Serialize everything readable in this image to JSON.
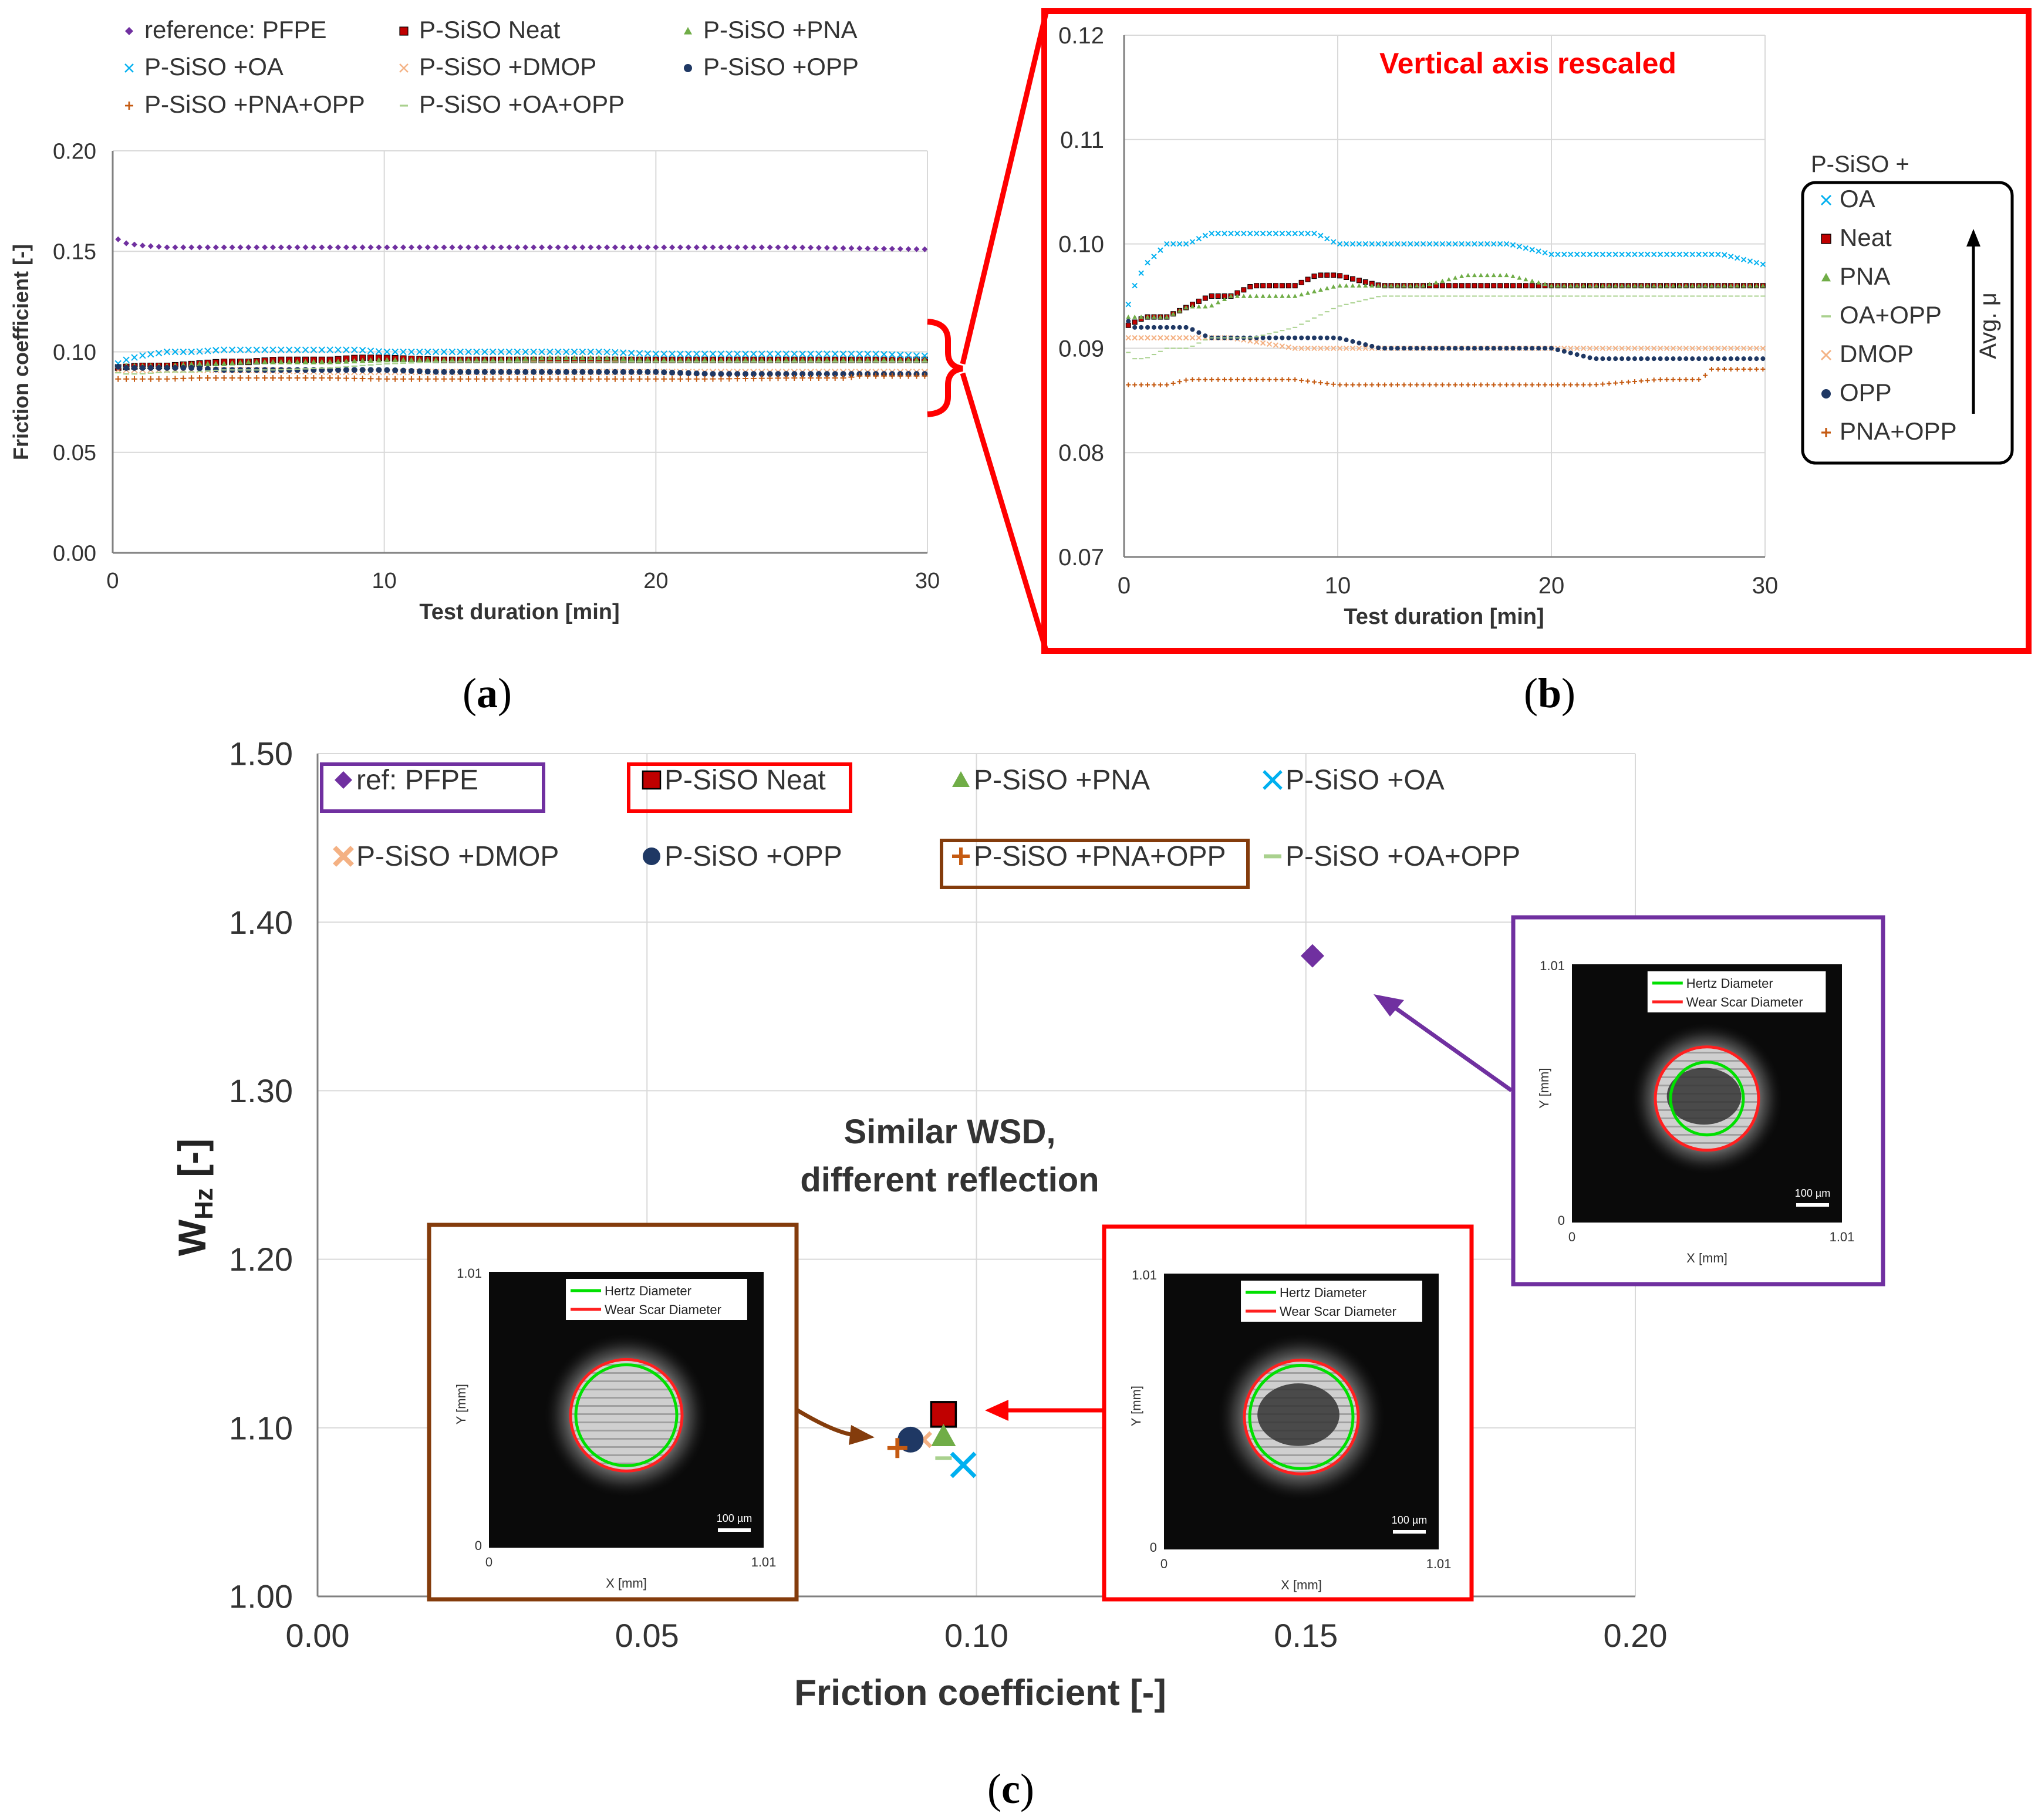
{
  "colors": {
    "pfpe": "#7030A0",
    "neat": "#C00000",
    "pna": "#70AD47",
    "oa": "#00B0F0",
    "dmop": "#F4B183",
    "opp": "#1F3864",
    "pna_opp": "#C55A11",
    "oa_opp": "#A9D18E",
    "red_box": "#FF0000",
    "purple_box": "#7030A0",
    "brown_box": "#843C0C",
    "grid": "#D9D9D9",
    "axis": "#808080"
  },
  "panels": {
    "a": {
      "label_open": "(",
      "label_letter": "a",
      "label_close": ")",
      "legend": [
        {
          "key": "pfpe",
          "label": "reference: PFPE",
          "marker": "diamond"
        },
        {
          "key": "neat",
          "label": "P-SiSO Neat",
          "marker": "square"
        },
        {
          "key": "pna",
          "label": "P-SiSO +PNA",
          "marker": "triangle"
        },
        {
          "key": "oa",
          "label": "P-SiSO +OA",
          "marker": "x"
        },
        {
          "key": "dmop",
          "label": "P-SiSO +DMOP",
          "marker": "x"
        },
        {
          "key": "opp",
          "label": "P-SiSO +OPP",
          "marker": "circle"
        },
        {
          "key": "pna_opp",
          "label": "P-SiSO +PNA+OPP",
          "marker": "plus"
        },
        {
          "key": "oa_opp",
          "label": "P-SiSO +OA+OPP",
          "marker": "dash"
        }
      ]
    },
    "b": {
      "label_open": "(",
      "label_letter": "b",
      "label_close": ")",
      "annotation": "Vertical axis rescaled",
      "legend_title": "P-SiSO +",
      "legend": [
        {
          "key": "oa",
          "label": "OA",
          "marker": "x"
        },
        {
          "key": "neat",
          "label": "Neat",
          "marker": "square"
        },
        {
          "key": "pna",
          "label": "PNA",
          "marker": "triangle"
        },
        {
          "key": "oa_opp",
          "label": "OA+OPP",
          "marker": "dash"
        },
        {
          "key": "dmop",
          "label": "DMOP",
          "marker": "x"
        },
        {
          "key": "opp",
          "label": "OPP",
          "marker": "circle"
        },
        {
          "key": "pna_opp",
          "label": "PNA+OPP",
          "marker": "plus"
        }
      ],
      "avg_label": "Avg. μ"
    },
    "c": {
      "label_open": "(",
      "label_letter": "c",
      "label_close": ")",
      "legend": [
        {
          "key": "pfpe",
          "label": "ref: PFPE",
          "marker": "diamond",
          "boxed": "purple_box"
        },
        {
          "key": "neat",
          "label": "P-SiSO Neat",
          "marker": "square",
          "boxed": "red_box"
        },
        {
          "key": "pna",
          "label": "P-SiSO +PNA",
          "marker": "triangle"
        },
        {
          "key": "oa",
          "label": "P-SiSO +OA",
          "marker": "x"
        },
        {
          "key": "dmop",
          "label": "P-SiSO +DMOP",
          "marker": "xbold"
        },
        {
          "key": "opp",
          "label": "P-SiSO +OPP",
          "marker": "circle"
        },
        {
          "key": "pna_opp",
          "label": "P-SiSO +PNA+OPP",
          "marker": "plus",
          "boxed": "brown_box"
        },
        {
          "key": "oa_opp",
          "label": "P-SiSO +OA+OPP",
          "marker": "dash"
        }
      ],
      "annotation_line1": "Similar WSD,",
      "annotation_line2": "different reflection",
      "ylabel_main": "W",
      "ylabel_sub": "Hz",
      "ylabel_tail": " [-]",
      "insets": [
        {
          "id": "pfpe",
          "legend_hertz": "Hertz Diameter",
          "legend_wsd": "Wear Scar Diameter",
          "ymax": "1.01",
          "xmax": "1.01",
          "zero": "0",
          "xlabel": "X [mm]",
          "ylabel": "Y [mm]",
          "scale": "100 µm"
        },
        {
          "id": "pna_opp",
          "legend_hertz": "Hertz Diameter",
          "legend_wsd": "Wear Scar Diameter",
          "ymax": "1.01",
          "xmax": "1.01",
          "zero": "0",
          "xlabel": "X [mm]",
          "ylabel": "Y [mm]",
          "scale": "100 µm"
        },
        {
          "id": "neat",
          "legend_hertz": "Hertz Diameter",
          "legend_wsd": "Wear Scar Diameter",
          "ymax": "1.01",
          "xmax": "1.01",
          "zero": "0",
          "xlabel": "X [mm]",
          "ylabel": "Y [mm]",
          "scale": "100 µm"
        }
      ]
    }
  },
  "chart_data": [
    {
      "type": "line",
      "panel": "a",
      "xlabel": "Test duration [min]",
      "ylabel": "Friction coefficient [-]",
      "xlim": [
        0,
        30
      ],
      "ylim": [
        0,
        0.2
      ],
      "xticks": [
        0,
        10,
        20,
        30
      ],
      "yticks": [
        0,
        0.05,
        0.1,
        0.15,
        0.2
      ],
      "xtick_labels": [
        "0",
        "10",
        "20",
        "30"
      ],
      "ytick_labels": [
        "0.00",
        "0.05",
        "0.10",
        "0.15",
        "0.20"
      ],
      "grid": true,
      "legend_position": "top",
      "series": [
        {
          "key": "pfpe",
          "name": "reference: PFPE",
          "x": [
            0.2,
            0.5,
            1,
            2,
            3,
            5,
            10,
            15,
            20,
            25,
            30
          ],
          "y": [
            0.156,
            0.154,
            0.153,
            0.152,
            0.152,
            0.152,
            0.152,
            0.152,
            0.152,
            0.152,
            0.151
          ]
        },
        {
          "key": "neat",
          "name": "P-SiSO Neat",
          "x": [
            0,
            1,
            2,
            3,
            4,
            5,
            6,
            7,
            8,
            9,
            10,
            12,
            14,
            16,
            18,
            20,
            22,
            25,
            28,
            30
          ],
          "y": [
            0.092,
            0.093,
            0.093,
            0.094,
            0.095,
            0.095,
            0.096,
            0.096,
            0.096,
            0.097,
            0.097,
            0.096,
            0.096,
            0.096,
            0.096,
            0.096,
            0.096,
            0.096,
            0.096,
            0.096
          ]
        },
        {
          "key": "pna",
          "name": "P-SiSO +PNA",
          "x": [
            0,
            1,
            2,
            3,
            4,
            5,
            6,
            8,
            10,
            12,
            14,
            16,
            18,
            20,
            22,
            25,
            28,
            30
          ],
          "y": [
            0.093,
            0.093,
            0.093,
            0.094,
            0.094,
            0.095,
            0.095,
            0.095,
            0.096,
            0.096,
            0.096,
            0.097,
            0.097,
            0.096,
            0.096,
            0.096,
            0.096,
            0.096
          ]
        },
        {
          "key": "oa",
          "name": "P-SiSO +OA",
          "x": [
            0,
            0.5,
            1,
            1.5,
            2,
            3,
            4,
            5,
            6,
            7,
            8,
            9,
            10,
            12,
            14,
            16,
            18,
            20,
            22,
            24,
            26,
            28,
            30
          ],
          "y": [
            0.093,
            0.096,
            0.098,
            0.099,
            0.1,
            0.1,
            0.101,
            0.101,
            0.101,
            0.101,
            0.101,
            0.101,
            0.1,
            0.1,
            0.1,
            0.1,
            0.1,
            0.099,
            0.099,
            0.099,
            0.099,
            0.099,
            0.098
          ]
        },
        {
          "key": "dmop",
          "name": "P-SiSO +DMOP",
          "x": [
            0,
            1,
            2,
            3,
            5,
            8,
            10,
            12,
            15,
            18,
            20,
            22,
            25,
            28,
            30
          ],
          "y": [
            0.091,
            0.091,
            0.091,
            0.091,
            0.091,
            0.09,
            0.09,
            0.09,
            0.09,
            0.09,
            0.09,
            0.09,
            0.09,
            0.09,
            0.09
          ]
        },
        {
          "key": "opp",
          "name": "P-SiSO +OPP",
          "x": [
            0,
            0.5,
            1,
            2,
            3,
            4,
            5,
            6,
            8,
            10,
            12,
            14,
            16,
            18,
            20,
            22,
            25,
            28,
            30
          ],
          "y": [
            0.093,
            0.092,
            0.092,
            0.092,
            0.092,
            0.091,
            0.091,
            0.091,
            0.091,
            0.091,
            0.09,
            0.09,
            0.09,
            0.09,
            0.09,
            0.089,
            0.089,
            0.089,
            0.089
          ]
        },
        {
          "key": "pna_opp",
          "name": "P-SiSO +PNA+OPP",
          "x": [
            0,
            1,
            2,
            3,
            5,
            8,
            10,
            12,
            15,
            18,
            20,
            22,
            25,
            27,
            27.5,
            28,
            30
          ],
          "y": [
            0.0865,
            0.0865,
            0.0865,
            0.087,
            0.087,
            0.087,
            0.0865,
            0.0865,
            0.0865,
            0.0865,
            0.0865,
            0.0865,
            0.087,
            0.087,
            0.088,
            0.088,
            0.088
          ]
        },
        {
          "key": "oa_opp",
          "name": "P-SiSO +OA+OPP",
          "x": [
            0,
            0.5,
            1,
            2,
            3,
            4,
            5,
            6,
            8,
            10,
            12,
            14,
            16,
            18,
            20,
            22,
            25,
            28,
            30
          ],
          "y": [
            0.09,
            0.089,
            0.089,
            0.09,
            0.09,
            0.091,
            0.091,
            0.091,
            0.092,
            0.094,
            0.095,
            0.095,
            0.095,
            0.095,
            0.095,
            0.095,
            0.095,
            0.095,
            0.095
          ]
        }
      ]
    },
    {
      "type": "line",
      "panel": "b",
      "xlabel": "Test duration [min]",
      "ylabel": "",
      "xlim": [
        0,
        30
      ],
      "ylim": [
        0.07,
        0.12
      ],
      "xticks": [
        0,
        10,
        20,
        30
      ],
      "yticks": [
        0.07,
        0.08,
        0.09,
        0.1,
        0.11,
        0.12
      ],
      "xtick_labels": [
        "0",
        "10",
        "20",
        "30"
      ],
      "ytick_labels": [
        "0.07",
        "0.08",
        "0.09",
        "0.10",
        "0.11",
        "0.12"
      ],
      "grid": true,
      "legend_position": "right",
      "series_ref": "same as panel a, excluding reference: PFPE"
    },
    {
      "type": "scatter",
      "panel": "c",
      "xlabel": "Friction coefficient [-]",
      "ylabel": "WHz [-]",
      "xlim": [
        0,
        0.2
      ],
      "ylim": [
        1.0,
        1.5
      ],
      "xticks": [
        0,
        0.05,
        0.1,
        0.15,
        0.2
      ],
      "yticks": [
        1.0,
        1.1,
        1.2,
        1.3,
        1.4,
        1.5
      ],
      "xtick_labels": [
        "0.00",
        "0.05",
        "0.10",
        "0.15",
        "0.20"
      ],
      "ytick_labels": [
        "1.00",
        "1.10",
        "1.20",
        "1.30",
        "1.40",
        "1.50"
      ],
      "grid": true,
      "legend_position": "top",
      "points": [
        {
          "key": "pfpe",
          "name": "ref: PFPE",
          "x": 0.151,
          "y": 1.38
        },
        {
          "key": "neat",
          "name": "P-SiSO Neat",
          "x": 0.095,
          "y": 1.108
        },
        {
          "key": "pna",
          "name": "P-SiSO +PNA",
          "x": 0.095,
          "y": 1.095
        },
        {
          "key": "oa",
          "name": "P-SiSO +OA",
          "x": 0.098,
          "y": 1.078
        },
        {
          "key": "dmop",
          "name": "P-SiSO +DMOP",
          "x": 0.092,
          "y": 1.093
        },
        {
          "key": "opp",
          "name": "P-SiSO +OPP",
          "x": 0.09,
          "y": 1.093
        },
        {
          "key": "pna_opp",
          "name": "P-SiSO +PNA+OPP",
          "x": 0.088,
          "y": 1.088
        },
        {
          "key": "oa_opp",
          "name": "P-SiSO +OA+OPP",
          "x": 0.095,
          "y": 1.082
        }
      ]
    }
  ]
}
